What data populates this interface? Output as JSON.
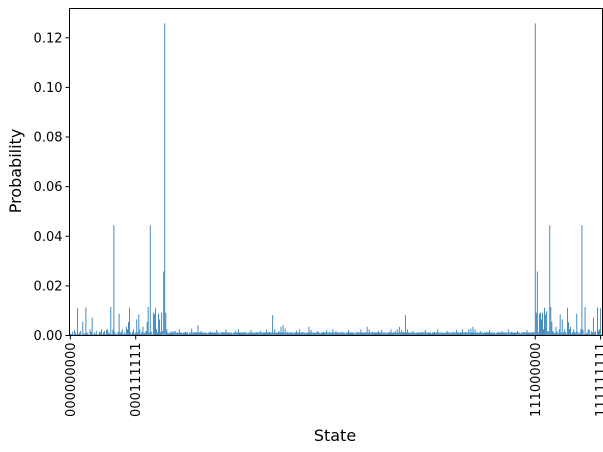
{
  "chart_data": {
    "type": "bar",
    "title": "",
    "xlabel": "State",
    "ylabel": "Probability",
    "ylim": [
      0,
      0.1318
    ],
    "xlim": [
      -0.8,
      512.8
    ],
    "yticks": [
      0.0,
      0.02,
      0.04,
      0.06,
      0.08,
      0.1,
      0.12
    ],
    "ytick_labels": [
      "0.00",
      "0.02",
      "0.04",
      "0.06",
      "0.08",
      "0.10",
      "0.12"
    ],
    "xtick_indices": [
      0,
      63,
      448,
      511
    ],
    "xtick_labels": [
      "000000000",
      "000111111",
      "111000000",
      "111111111"
    ],
    "bar_color": "#1f77b4",
    "grid": false,
    "legend": "none",
    "bar_width": 0.8,
    "baseline_value": 0.0012,
    "values_by_state": {
      "0": 0.0008,
      "1": 0.0005,
      "2": 0.0015,
      "3": 0.0003,
      "4": 0.0022,
      "5": 0.0012,
      "6": 0.0004,
      "7": 0.011,
      "8": 0.0006,
      "9": 0.0012,
      "10": 0.0018,
      "11": 0.0003,
      "12": 0.0055,
      "13": 0.0009,
      "14": 0.0006,
      "15": 0.0113,
      "16": 0.0012,
      "17": 0.0008,
      "18": 0.0003,
      "19": 0.0025,
      "20": 0.0015,
      "21": 0.0072,
      "22": 0.0004,
      "23": 0.0012,
      "24": 0.0007,
      "25": 0.0019,
      "26": 0.0006,
      "27": 0.0003,
      "28": 0.0016,
      "29": 0.0012,
      "30": 0.0025,
      "31": 0.0005,
      "32": 0.0013,
      "33": 0.0018,
      "34": 0.0006,
      "35": 0.0023,
      "36": 0.0025,
      "37": 0.0012,
      "38": 0.0008,
      "39": 0.0115,
      "40": 0.0006,
      "41": 0.0023,
      "42": 0.0445,
      "43": 0.0012,
      "44": 0.0007,
      "45": 0.0004,
      "46": 0.0015,
      "47": 0.0088,
      "48": 0.0011,
      "49": 0.0015,
      "50": 0.0025,
      "51": 0.0006,
      "52": 0.0012,
      "53": 0.0008,
      "54": 0.0035,
      "55": 0.0025,
      "56": 0.0054,
      "57": 0.0112,
      "58": 0.0012,
      "59": 0.0005,
      "60": 0.0015,
      "61": 0.0025,
      "62": 0.0008,
      "63": 0.0012,
      "64": 0.0065,
      "65": 0.0012,
      "66": 0.0085,
      "67": 0.0025,
      "68": 0.0007,
      "69": 0.0015,
      "70": 0.0035,
      "71": 0.0009,
      "72": 0.0012,
      "73": 0.0018,
      "74": 0.0055,
      "75": 0.0115,
      "76": 0.0012,
      "77": 0.0444,
      "78": 0.0015,
      "79": 0.0006,
      "80": 0.0092,
      "81": 0.0085,
      "82": 0.0112,
      "83": 0.0025,
      "84": 0.0012,
      "85": 0.0088,
      "86": 0.0065,
      "87": 0.0015,
      "88": 0.0092,
      "89": 0.0018,
      "90": 0.0258,
      "91": 0.1258,
      "92": 0.0092,
      "93": 0.0025,
      "95": 0.0008,
      "97": 0.0015,
      "99": 0.0018,
      "101": 0.0019,
      "103": 0.0012,
      "105": 0.0025,
      "108": 0.0009,
      "111": 0.0015,
      "114": 0.0006,
      "117": 0.0028,
      "120": 0.0014,
      "123": 0.0041,
      "126": 0.0018,
      "129": 0.0012,
      "132": 0.0008,
      "135": 0.0016,
      "138": 0.0011,
      "141": 0.0022,
      "144": 0.0009,
      "147": 0.0014,
      "150": 0.0025,
      "153": 0.0012,
      "156": 0.0008,
      "159": 0.0018,
      "162": 0.0025,
      "165": 0.0012,
      "168": 0.0015,
      "171": 0.0009,
      "174": 0.0022,
      "177": 0.0011,
      "180": 0.0014,
      "183": 0.0019,
      "186": 0.0012,
      "189": 0.0024,
      "192": 0.0015,
      "195": 0.0082,
      "197": 0.0025,
      "199": 0.0012,
      "201": 0.0018,
      "203": 0.0035,
      "205": 0.0042,
      "207": 0.0028,
      "209": 0.0015,
      "212": 0.0012,
      "215": 0.0008,
      "218": 0.0019,
      "221": 0.0025,
      "224": 0.0015,
      "227": 0.0009,
      "230": 0.0035,
      "232": 0.0022,
      "235": 0.0012,
      "238": 0.0018,
      "241": 0.0009,
      "244": 0.0015,
      "247": 0.0023,
      "250": 0.0015,
      "253": 0.0025,
      "256": 0.0018,
      "259": 0.0012,
      "262": 0.0015,
      "265": 0.0009,
      "268": 0.0022,
      "271": 0.0012,
      "274": 0.0008,
      "277": 0.0015,
      "280": 0.0025,
      "283": 0.0012,
      "286": 0.0035,
      "288": 0.0025,
      "291": 0.0015,
      "294": 0.0012,
      "297": 0.0018,
      "300": 0.0022,
      "303": 0.0012,
      "305": 0.0009,
      "307": 0.0015,
      "309": 0.0025,
      "311": 0.0012,
      "313": 0.0018,
      "315": 0.0025,
      "317": 0.0035,
      "319": 0.0022,
      "321": 0.0015,
      "323": 0.0082,
      "325": 0.0025,
      "327": 0.0012,
      "330": 0.0018,
      "333": 0.0009,
      "336": 0.0012,
      "339": 0.0015,
      "342": 0.0022,
      "345": 0.0012,
      "348": 0.0008,
      "351": 0.0015,
      "354": 0.0025,
      "357": 0.0012,
      "360": 0.0009,
      "363": 0.0018,
      "366": 0.0012,
      "369": 0.0015,
      "372": 0.0022,
      "375": 0.0012,
      "378": 0.0025,
      "381": 0.0015,
      "384": 0.0025,
      "386": 0.0028,
      "388": 0.0035,
      "390": 0.0025,
      "392": 0.0012,
      "395": 0.0018,
      "398": 0.0009,
      "401": 0.0015,
      "404": 0.0022,
      "407": 0.0012,
      "410": 0.0008,
      "413": 0.0015,
      "416": 0.0018,
      "419": 0.0012,
      "422": 0.0025,
      "425": 0.0015,
      "428": 0.0012,
      "431": 0.0018,
      "434": 0.0009,
      "437": 0.0015,
      "440": 0.0022,
      "443": 0.0012,
      "446": 0.0015,
      "448": 0.1258,
      "449": 0.0092,
      "450": 0.0258,
      "451": 0.0012,
      "452": 0.0088,
      "453": 0.0092,
      "454": 0.0065,
      "455": 0.0092,
      "456": 0.0025,
      "457": 0.0112,
      "458": 0.0085,
      "459": 0.0098,
      "460": 0.0018,
      "461": 0.0015,
      "462": 0.0444,
      "463": 0.0115,
      "464": 0.0055,
      "465": 0.0018,
      "466": 0.0012,
      "467": 0.0009,
      "468": 0.0035,
      "469": 0.0015,
      "470": 0.0008,
      "471": 0.0025,
      "472": 0.0085,
      "473": 0.0012,
      "474": 0.0065,
      "475": 0.0012,
      "476": 0.0025,
      "477": 0.0015,
      "478": 0.0008,
      "479": 0.0112,
      "480": 0.0054,
      "481": 0.0025,
      "482": 0.0035,
      "483": 0.0008,
      "484": 0.0012,
      "485": 0.0025,
      "486": 0.0015,
      "487": 0.0011,
      "488": 0.0088,
      "489": 0.0015,
      "490": 0.0007,
      "491": 0.0012,
      "492": 0.0025,
      "493": 0.0445,
      "494": 0.0023,
      "495": 0.0006,
      "496": 0.0115,
      "497": 0.0008,
      "498": 0.0012,
      "499": 0.0025,
      "500": 0.0023,
      "501": 0.0006,
      "502": 0.0018,
      "503": 0.0013,
      "504": 0.0072,
      "505": 0.0012,
      "506": 0.0016,
      "507": 0.0003,
      "508": 0.0113,
      "509": 0.0019,
      "510": 0.0025,
      "511": 0.011
    }
  }
}
